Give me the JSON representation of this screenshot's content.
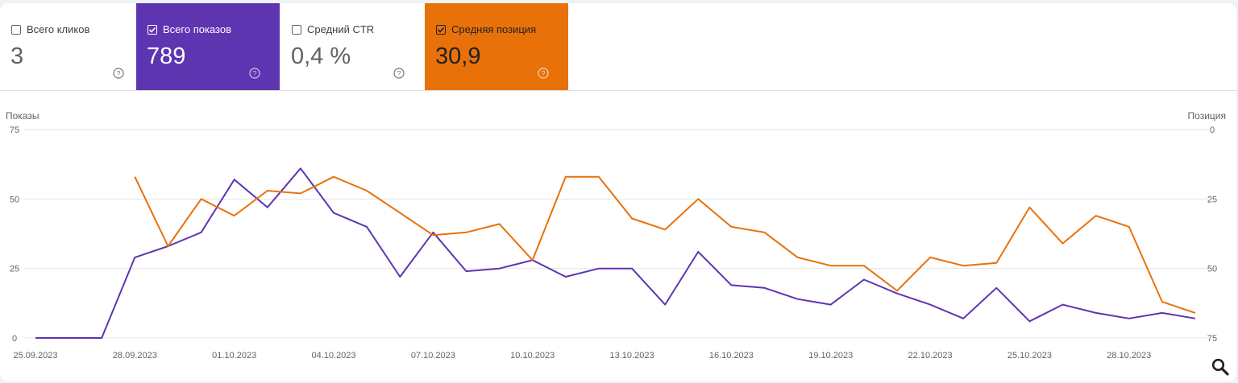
{
  "cards": [
    {
      "label": "Всего кликов",
      "value": "3",
      "checked": false
    },
    {
      "label": "Всего показов",
      "value": "789",
      "checked": true,
      "color": "#5e35b1"
    },
    {
      "label": "Средний CTR",
      "value": "0,4 %",
      "checked": false
    },
    {
      "label": "Средняя позиция",
      "value": "30,9",
      "checked": true,
      "color": "#e8710a"
    }
  ],
  "icons": {
    "help": "help-circle-icon",
    "zoom": "zoom-search-icon",
    "checkbox": "checkbox-icon"
  },
  "chart_data": {
    "type": "line",
    "left_axis_label": "Показы",
    "right_axis_label": "Позиция",
    "left_ylim": [
      0,
      75
    ],
    "left_ticks": [
      "0",
      "25",
      "50",
      "75"
    ],
    "right_ylim": [
      75,
      0
    ],
    "right_ticks": [
      "75",
      "50",
      "25",
      "0"
    ],
    "x": [
      "25.09.2023",
      "26.09.2023",
      "27.09.2023",
      "28.09.2023",
      "29.09.2023",
      "30.09.2023",
      "01.10.2023",
      "02.10.2023",
      "03.10.2023",
      "04.10.2023",
      "05.10.2023",
      "06.10.2023",
      "07.10.2023",
      "08.10.2023",
      "09.10.2023",
      "10.10.2023",
      "11.10.2023",
      "12.10.2023",
      "13.10.2023",
      "14.10.2023",
      "15.10.2023",
      "16.10.2023",
      "17.10.2023",
      "18.10.2023",
      "19.10.2023",
      "20.10.2023",
      "21.10.2023",
      "22.10.2023",
      "23.10.2023",
      "24.10.2023",
      "25.10.2023",
      "26.10.2023",
      "27.10.2023",
      "28.10.2023",
      "29.10.2023",
      "30.10.2023"
    ],
    "x_ticks": [
      "25.09.2023",
      "28.09.2023",
      "01.10.2023",
      "04.10.2023",
      "07.10.2023",
      "10.10.2023",
      "13.10.2023",
      "16.10.2023",
      "19.10.2023",
      "22.10.2023",
      "25.10.2023",
      "28.10.2023"
    ],
    "grid": true,
    "series": [
      {
        "name": "Всего показов",
        "axis": "left",
        "color": "#5e35b1",
        "values": [
          0,
          0,
          0,
          29,
          33,
          38,
          57,
          47,
          61,
          45,
          40,
          22,
          38,
          24,
          25,
          28,
          22,
          25,
          25,
          12,
          31,
          19,
          18,
          14,
          12,
          21,
          16,
          12,
          7,
          18,
          6,
          12,
          9,
          7,
          9,
          7
        ]
      },
      {
        "name": "Средняя позиция",
        "axis": "right",
        "color": "#e8710a",
        "values": [
          null,
          null,
          null,
          17,
          42,
          25,
          31,
          22,
          23,
          17,
          22,
          30,
          38,
          37,
          34,
          47,
          17,
          17,
          32,
          36,
          25,
          35,
          37,
          46,
          49,
          49,
          58,
          46,
          49,
          48,
          28,
          41,
          31,
          35,
          62,
          66
        ]
      }
    ]
  }
}
